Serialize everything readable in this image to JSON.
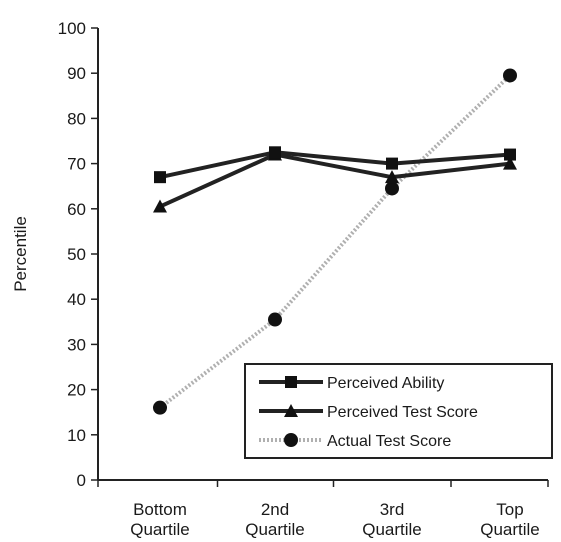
{
  "chart_data": {
    "type": "line",
    "categories": [
      [
        "Bottom",
        "Quartile"
      ],
      [
        "2nd",
        "Quartile"
      ],
      [
        "3rd",
        "Quartile"
      ],
      [
        "Top",
        "Quartile"
      ]
    ],
    "ylabel": "Percentile",
    "xlabel": "",
    "title": "",
    "ylim": [
      0,
      100
    ],
    "yticks": [
      0,
      10,
      20,
      30,
      40,
      50,
      60,
      70,
      80,
      90,
      100
    ],
    "grid": false,
    "legend_position": "bottom-right",
    "series": [
      {
        "name": "Perceived Ability",
        "marker": "square",
        "color": "#222222",
        "dashed": false,
        "values": [
          67,
          72.5,
          70,
          72
        ]
      },
      {
        "name": "Perceived Test Score",
        "marker": "triangle",
        "color": "#222222",
        "dashed": false,
        "values": [
          60.5,
          72,
          67,
          70
        ]
      },
      {
        "name": "Actual Test Score",
        "marker": "circle",
        "color": "#b0b0b0",
        "dashed": true,
        "values": [
          16,
          35.5,
          64.5,
          89.5
        ]
      }
    ]
  }
}
